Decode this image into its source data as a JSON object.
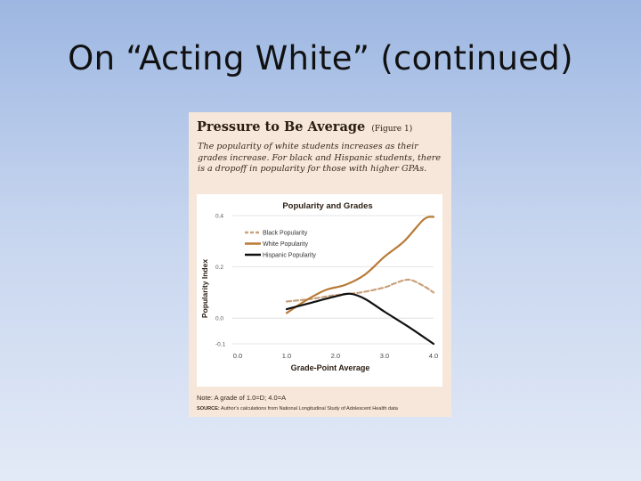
{
  "slide": {
    "title": "On “Acting White” (continued)"
  },
  "figure": {
    "heading": "Pressure to Be Average",
    "figure_label": "(Figure 1)",
    "description": "The popularity of white students increases as their grades increase. For black and Hispanic students, there is a dropoff in popularity for those with higher GPAs.",
    "note": "Note: A grade of 1.0=D; 4.0=A",
    "source_label": "SOURCE:",
    "source_text": "Author's calculations from National Longitudinal Study of Adolescent Health data"
  },
  "chart_data": {
    "type": "line",
    "title": "Popularity and Grades",
    "xlabel": "Grade-Point Average",
    "ylabel": "Popularity Index",
    "xlim": [
      0.0,
      4.0
    ],
    "ylim": [
      -0.1,
      0.4
    ],
    "x_tick_labels": [
      "0.0",
      "1.0",
      "2.0",
      "3.0",
      "4.0"
    ],
    "y_tick_labels": [
      "0.4",
      "0.2",
      "0.0",
      "-0.1"
    ],
    "grid": true,
    "legend_position": "top-left",
    "series": [
      {
        "name": "Black Popularity",
        "color": "#c9a17c",
        "dash": true,
        "x": [
          1.0,
          1.5,
          2.0,
          2.5,
          3.0,
          3.2,
          3.5,
          3.8,
          4.0
        ],
        "y": [
          0.065,
          0.075,
          0.09,
          0.1,
          0.12,
          0.135,
          0.15,
          0.125,
          0.1
        ]
      },
      {
        "name": "White Popularity",
        "color": "#b87a37",
        "dash": false,
        "x": [
          1.0,
          1.4,
          1.8,
          2.2,
          2.6,
          3.0,
          3.4,
          3.8,
          4.0
        ],
        "y": [
          0.02,
          0.07,
          0.11,
          0.13,
          0.17,
          0.24,
          0.3,
          0.385,
          0.395
        ]
      },
      {
        "name": "Hispanic Popularity",
        "color": "#111111",
        "dash": false,
        "x": [
          1.0,
          1.5,
          2.0,
          2.3,
          2.6,
          3.0,
          3.5,
          4.0
        ],
        "y": [
          0.035,
          0.06,
          0.085,
          0.095,
          0.075,
          0.025,
          -0.035,
          -0.1
        ]
      }
    ]
  }
}
